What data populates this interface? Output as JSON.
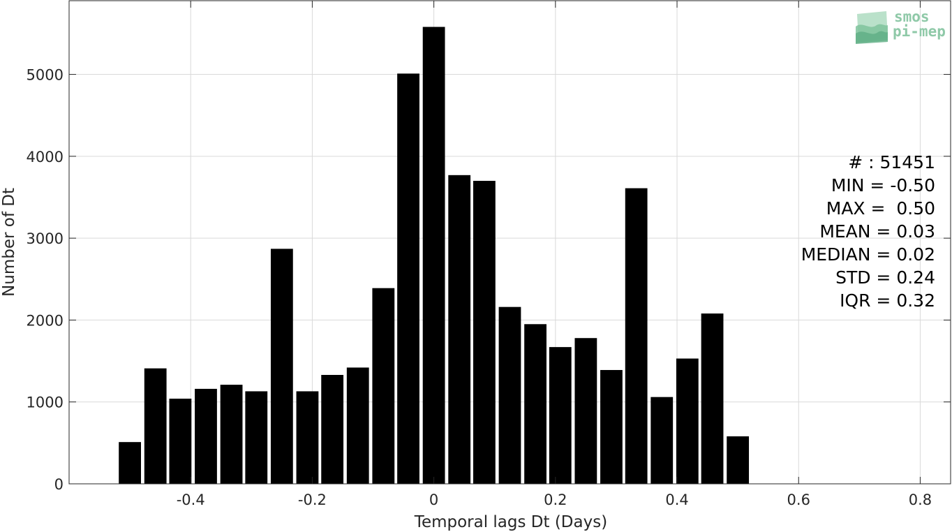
{
  "chart_data": {
    "type": "bar",
    "xlabel": "Temporal lags Dt (Days)",
    "ylabel": "Number of Dt",
    "xlim": [
      -0.6,
      0.85
    ],
    "ylim": [
      0,
      5900
    ],
    "grid": true,
    "bar_color": "#000000",
    "x": [
      -0.5,
      -0.458,
      -0.417,
      -0.375,
      -0.333,
      -0.292,
      -0.25,
      -0.208,
      -0.167,
      -0.125,
      -0.083,
      -0.042,
      0.0,
      0.042,
      0.083,
      0.125,
      0.167,
      0.208,
      0.25,
      0.292,
      0.333,
      0.375,
      0.417,
      0.458,
      0.5
    ],
    "values": [
      510,
      1410,
      1040,
      1160,
      1210,
      1130,
      2870,
      1130,
      1330,
      1420,
      2390,
      5010,
      5580,
      3770,
      3700,
      2160,
      1950,
      1670,
      1780,
      1390,
      3610,
      1060,
      1530,
      2080,
      580
    ],
    "x_ticks": [
      "-0.4",
      "-0.2",
      "0",
      "0.2",
      "0.4",
      "0.6",
      "0.8"
    ],
    "x_tick_values": [
      -0.4,
      -0.2,
      0,
      0.2,
      0.4,
      0.6,
      0.8
    ],
    "y_ticks": [
      "0",
      "1000",
      "2000",
      "3000",
      "4000",
      "5000"
    ],
    "y_tick_values": [
      0,
      1000,
      2000,
      3000,
      4000,
      5000
    ]
  },
  "stats": [
    "# : 51451",
    "MIN = -0.50",
    "MAX =  0.50",
    "MEAN = 0.03",
    "MEDIAN = 0.02",
    "STD = 0.24",
    "IQR = 0.32"
  ],
  "logo": {
    "line1": "smos",
    "line2": "pi-mep",
    "color": "#8fc9a8"
  }
}
